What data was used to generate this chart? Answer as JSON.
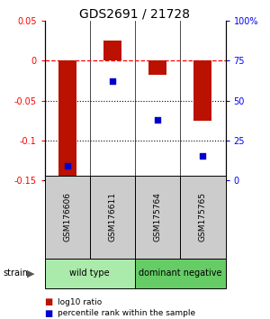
{
  "title": "GDS2691 / 21728",
  "samples": [
    "GSM176606",
    "GSM176611",
    "GSM175764",
    "GSM175765"
  ],
  "log10_ratio": [
    -0.155,
    0.025,
    -0.018,
    -0.075
  ],
  "percentile_rank": [
    9.0,
    62.0,
    38.0,
    15.0
  ],
  "groups": [
    {
      "label": "wild type",
      "samples": [
        0,
        1
      ],
      "color": "#aaeaaa"
    },
    {
      "label": "dominant negative",
      "samples": [
        2,
        3
      ],
      "color": "#66cc66"
    }
  ],
  "ylim_left": [
    -0.15,
    0.05
  ],
  "ylim_right": [
    0,
    100
  ],
  "yticks_left": [
    -0.15,
    -0.1,
    -0.05,
    0,
    0.05
  ],
  "yticks_right": [
    0,
    25,
    50,
    75,
    100
  ],
  "ytick_labels_left": [
    "-0.15",
    "-0.1",
    "-0.05",
    "0",
    "0.05"
  ],
  "ytick_labels_right": [
    "0",
    "25",
    "50",
    "75",
    "100%"
  ],
  "hlines_dotted": [
    -0.05,
    -0.1
  ],
  "hline_dashed": 0,
  "bar_color": "#bb1100",
  "dot_color": "#0000cc",
  "bar_width": 0.4,
  "legend_items": [
    {
      "label": "log10 ratio",
      "color": "#bb1100"
    },
    {
      "label": "percentile rank within the sample",
      "color": "#0000cc"
    }
  ],
  "strain_label": "strain",
  "label_box_color": "#cccccc",
  "background_color": "#ffffff"
}
